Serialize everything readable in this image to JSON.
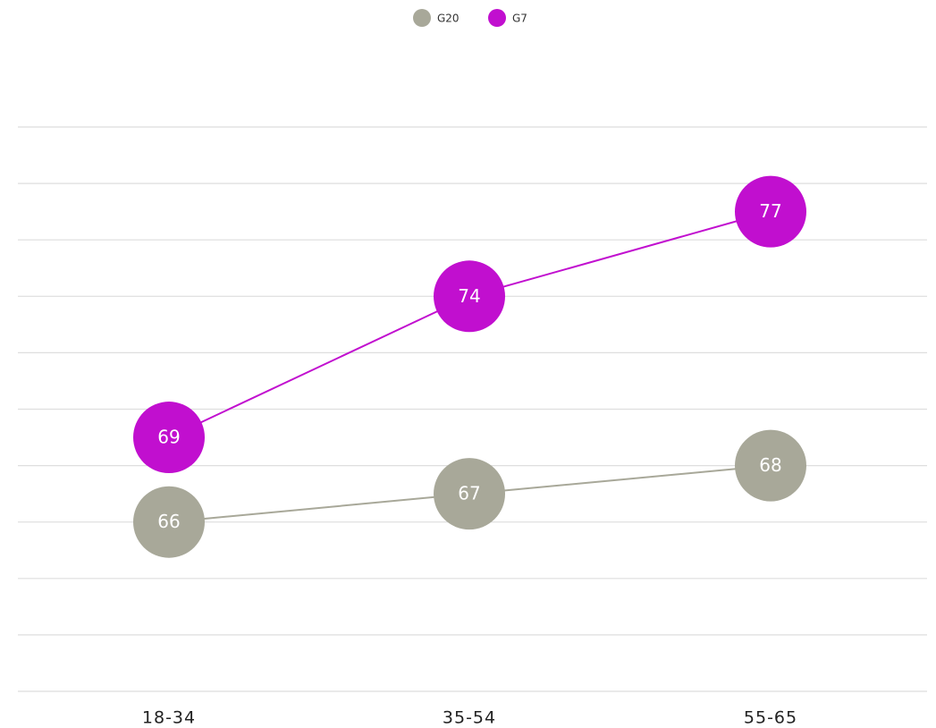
{
  "chart_data": {
    "type": "line",
    "categories": [
      "18-34",
      "35-54",
      "55-65"
    ],
    "series": [
      {
        "name": "G20",
        "color": "#a8a899",
        "values": [
          66,
          67,
          68
        ]
      },
      {
        "name": "G7",
        "color": "#c10fcf",
        "values": [
          69,
          74,
          77
        ]
      }
    ],
    "ylim": [
      60,
      80
    ],
    "yticks": [
      60,
      62,
      64,
      66,
      68,
      70,
      72,
      74,
      76,
      78,
      80
    ],
    "grid": true,
    "legend": "top"
  }
}
